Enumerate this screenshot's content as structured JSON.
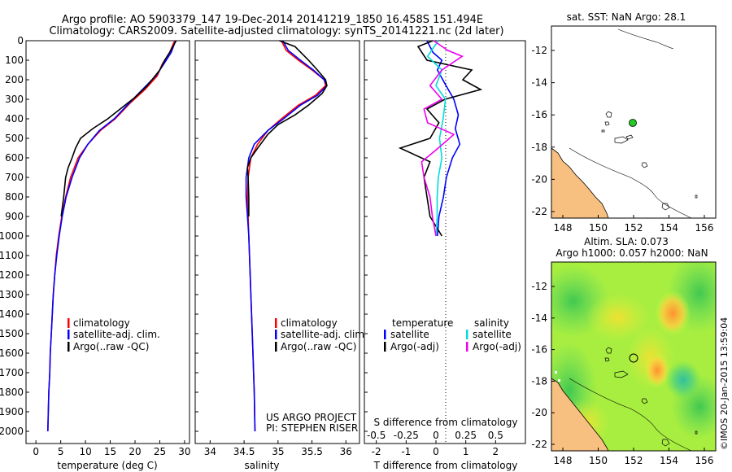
{
  "titles": {
    "line1": "Argo profile: AO 5903379_147 19-Dec-2014 20141219_1850 16.458S 151.494E",
    "line2": "Climatology: CARS2009. Satellite-adjusted climatology: synTS_20141221.nc (2d later)"
  },
  "colors": {
    "climatology": "#ff0000",
    "satellite": "#0000ff",
    "argo": "#000000",
    "satellite_s": "#00dddd",
    "argo_s": "#ee00ee",
    "land": "#f8c080",
    "dot": "#22cc22"
  },
  "chart_data": [
    {
      "id": "temperature",
      "type": "line",
      "xlabel": "temperature (deg C)",
      "ylabel": "",
      "xlim": [
        -2,
        31
      ],
      "ylim": [
        2000,
        0
      ],
      "xticks": [
        "0",
        "5",
        "10",
        "15",
        "20",
        "25",
        "30"
      ],
      "yticks": [
        "0",
        "100",
        "200",
        "300",
        "400",
        "500",
        "600",
        "700",
        "800",
        "900",
        "1000",
        "1100",
        "1200",
        "1300",
        "1400",
        "1500",
        "1600",
        "1700",
        "1800",
        "1900",
        "2000"
      ],
      "legend": [
        "climatology",
        "satellite-adj. clim.",
        "Argo(..raw -QC)"
      ],
      "series": [
        {
          "name": "climatology",
          "points": [
            [
              28,
              0
            ],
            [
              27,
              60
            ],
            [
              25.5,
              120
            ],
            [
              24.5,
              180
            ],
            [
              22,
              250
            ],
            [
              19,
              320
            ],
            [
              16,
              400
            ],
            [
              13,
              460
            ],
            [
              10.5,
              530
            ],
            [
              8.5,
              600
            ],
            [
              7,
              700
            ],
            [
              6,
              800
            ],
            [
              5.2,
              900
            ],
            [
              4.6,
              1000
            ],
            [
              4.1,
              1100
            ],
            [
              3.8,
              1200
            ],
            [
              3.5,
              1300
            ],
            [
              3.3,
              1400
            ],
            [
              3.1,
              1500
            ],
            [
              2.9,
              1600
            ],
            [
              2.8,
              1700
            ],
            [
              2.6,
              1800
            ],
            [
              2.5,
              1900
            ],
            [
              2.4,
              2000
            ]
          ]
        },
        {
          "name": "satellite-adj. clim.",
          "points": [
            [
              28.2,
              0
            ],
            [
              27.3,
              60
            ],
            [
              25.8,
              120
            ],
            [
              24.2,
              180
            ],
            [
              21.5,
              250
            ],
            [
              18.8,
              320
            ],
            [
              15.8,
              400
            ],
            [
              12.8,
              460
            ],
            [
              10.5,
              530
            ],
            [
              8.8,
              600
            ],
            [
              7.3,
              700
            ],
            [
              6.1,
              800
            ],
            [
              5.3,
              900
            ],
            [
              4.7,
              1000
            ],
            [
              4.2,
              1100
            ],
            [
              3.8,
              1200
            ],
            [
              3.5,
              1300
            ],
            [
              3.3,
              1400
            ],
            [
              3.1,
              1500
            ],
            [
              2.9,
              1600
            ],
            [
              2.8,
              1700
            ],
            [
              2.6,
              1800
            ],
            [
              2.5,
              1900
            ],
            [
              2.4,
              2000
            ]
          ]
        },
        {
          "name": "Argo(..raw -QC)",
          "points": [
            [
              28.3,
              0
            ],
            [
              27,
              60
            ],
            [
              26,
              100
            ],
            [
              25,
              150
            ],
            [
              22.5,
              230
            ],
            [
              20,
              290
            ],
            [
              17,
              350
            ],
            [
              14.5,
              400
            ],
            [
              11.5,
              450
            ],
            [
              9,
              500
            ],
            [
              8,
              550
            ],
            [
              7.3,
              600
            ],
            [
              6.5,
              650
            ],
            [
              6,
              700
            ],
            [
              5.6,
              800
            ],
            [
              5.1,
              900
            ]
          ]
        }
      ]
    },
    {
      "id": "salinity",
      "type": "line",
      "xlabel": "salinity",
      "ylabel": "",
      "xlim": [
        33.78,
        36.2
      ],
      "ylim": [
        2000,
        0
      ],
      "xticks": [
        "34",
        "34.5",
        "35",
        "35.5",
        "36"
      ],
      "legend": [
        "climatology",
        "satellite-adj. clim.",
        "Argo(..raw -QC)"
      ],
      "annotation": [
        "US ARGO PROJECT",
        "PI: STEPHEN RISER"
      ],
      "series": [
        {
          "name": "climatology",
          "points": [
            [
              35.05,
              0
            ],
            [
              35.12,
              50
            ],
            [
              35.3,
              100
            ],
            [
              35.5,
              150
            ],
            [
              35.68,
              200
            ],
            [
              35.7,
              230
            ],
            [
              35.55,
              280
            ],
            [
              35.3,
              330
            ],
            [
              35.05,
              400
            ],
            [
              34.85,
              460
            ],
            [
              34.7,
              530
            ],
            [
              34.6,
              600
            ],
            [
              34.56,
              700
            ],
            [
              34.55,
              800
            ],
            [
              34.56,
              900
            ],
            [
              34.57,
              1000
            ],
            [
              34.59,
              1200
            ],
            [
              34.61,
              1400
            ],
            [
              34.63,
              1600
            ],
            [
              34.65,
              1800
            ],
            [
              34.66,
              2000
            ]
          ]
        },
        {
          "name": "satellite-adj. clim.",
          "points": [
            [
              35.07,
              0
            ],
            [
              35.15,
              50
            ],
            [
              35.33,
              100
            ],
            [
              35.52,
              150
            ],
            [
              35.68,
              200
            ],
            [
              35.72,
              230
            ],
            [
              35.58,
              280
            ],
            [
              35.33,
              330
            ],
            [
              35.08,
              400
            ],
            [
              34.85,
              460
            ],
            [
              34.65,
              530
            ],
            [
              34.57,
              600
            ],
            [
              34.53,
              700
            ],
            [
              34.53,
              800
            ],
            [
              34.55,
              900
            ],
            [
              34.57,
              1000
            ],
            [
              34.59,
              1200
            ],
            [
              34.61,
              1400
            ],
            [
              34.63,
              1600
            ],
            [
              34.65,
              1800
            ],
            [
              34.66,
              2000
            ]
          ]
        },
        {
          "name": "Argo(..raw -QC)",
          "points": [
            [
              35.02,
              0
            ],
            [
              35.25,
              30
            ],
            [
              35.45,
              100
            ],
            [
              35.58,
              150
            ],
            [
              35.7,
              200
            ],
            [
              35.72,
              230
            ],
            [
              35.65,
              270
            ],
            [
              35.45,
              330
            ],
            [
              35.25,
              380
            ],
            [
              35,
              430
            ],
            [
              34.85,
              480
            ],
            [
              34.7,
              550
            ],
            [
              34.6,
              600
            ],
            [
              34.55,
              650
            ],
            [
              34.56,
              700
            ],
            [
              34.57,
              800
            ],
            [
              34.57,
              900
            ]
          ]
        }
      ]
    },
    {
      "id": "differences",
      "type": "line",
      "xlabel": "T difference from climatology",
      "x2label": "S difference from climatology",
      "xlim": [
        -2.4,
        3.0
      ],
      "x2lim": [
        -0.6,
        0.75
      ],
      "ylim": [
        2000,
        0
      ],
      "xticks": [
        "-2",
        "-1",
        "0",
        "1",
        "2"
      ],
      "x2ticks": [
        "-0.5",
        "-0.25",
        "0",
        "0.25",
        "0.5"
      ],
      "legend_t": {
        "heading": "temperature",
        "items": [
          "satellite",
          "Argo(-adj)"
        ]
      },
      "legend_s": {
        "heading": "salinity",
        "items": [
          "satellite",
          "Argo(-adj)"
        ]
      },
      "series": [
        {
          "name": "satellite",
          "points": [
            [
              -0.3,
              0
            ],
            [
              -0.1,
              60
            ],
            [
              0.2,
              100
            ],
            [
              0.05,
              150
            ],
            [
              0.3,
              220
            ],
            [
              0.6,
              300
            ],
            [
              0.75,
              380
            ],
            [
              0.65,
              450
            ],
            [
              0.8,
              530
            ],
            [
              0.55,
              600
            ],
            [
              0.35,
              700
            ],
            [
              0.25,
              800
            ],
            [
              0.1,
              900
            ],
            [
              0.05,
              1000
            ]
          ]
        },
        {
          "name": "Argo(-adj)",
          "points": [
            [
              -0.1,
              0
            ],
            [
              -0.6,
              30
            ],
            [
              -0.3,
              100
            ],
            [
              1.2,
              150
            ],
            [
              0.9,
              200
            ],
            [
              1.5,
              250
            ],
            [
              0.3,
              300
            ],
            [
              -0.3,
              350
            ],
            [
              0.1,
              420
            ],
            [
              -0.2,
              500
            ],
            [
              -1.2,
              550
            ],
            [
              -0.2,
              620
            ],
            [
              -0.4,
              700
            ],
            [
              -0.3,
              800
            ],
            [
              -0.2,
              900
            ],
            [
              0.2,
              1000
            ]
          ]
        },
        {
          "name": "satellite (salinity)",
          "points": [
            [
              0.02,
              0
            ],
            [
              -0.07,
              80
            ],
            [
              0.05,
              150
            ],
            [
              0,
              230
            ],
            [
              0.08,
              300
            ],
            [
              0.06,
              400
            ],
            [
              0.03,
              500
            ],
            [
              0.05,
              600
            ],
            [
              0.02,
              700
            ],
            [
              0.01,
              800
            ],
            [
              0.01,
              900
            ],
            [
              0,
              1000
            ]
          ]
        },
        {
          "name": "Argo(-adj) (salinity)",
          "points": [
            [
              -0.02,
              0
            ],
            [
              0.1,
              50
            ],
            [
              0.22,
              80
            ],
            [
              0.05,
              150
            ],
            [
              -0.05,
              230
            ],
            [
              0.05,
              300
            ],
            [
              -0.1,
              350
            ],
            [
              -0.07,
              420
            ],
            [
              0.15,
              480
            ],
            [
              0,
              560
            ],
            [
              -0.12,
              620
            ],
            [
              -0.1,
              700
            ],
            [
              -0.05,
              800
            ],
            [
              -0.03,
              900
            ],
            [
              0,
              1000
            ]
          ]
        }
      ]
    }
  ],
  "map_top": {
    "title": "sat. SST: NaN Argo: 28.1",
    "xticks": [
      "148",
      "150",
      "152",
      "154",
      "156"
    ],
    "yticks": [
      "-12",
      "-14",
      "-16",
      "-18",
      "-20",
      "-22"
    ]
  },
  "map_bottom": {
    "title1": "Altim. SLA: 0.073",
    "title2": "Argo h1000: 0.057 h2000: NaN",
    "xticks": [
      "148",
      "150",
      "152",
      "154",
      "156"
    ],
    "yticks": [
      "-12",
      "-14",
      "-16",
      "-18",
      "-20",
      "-22"
    ]
  },
  "credit": "©IMOS 20-Jan-2015 13:59:04"
}
